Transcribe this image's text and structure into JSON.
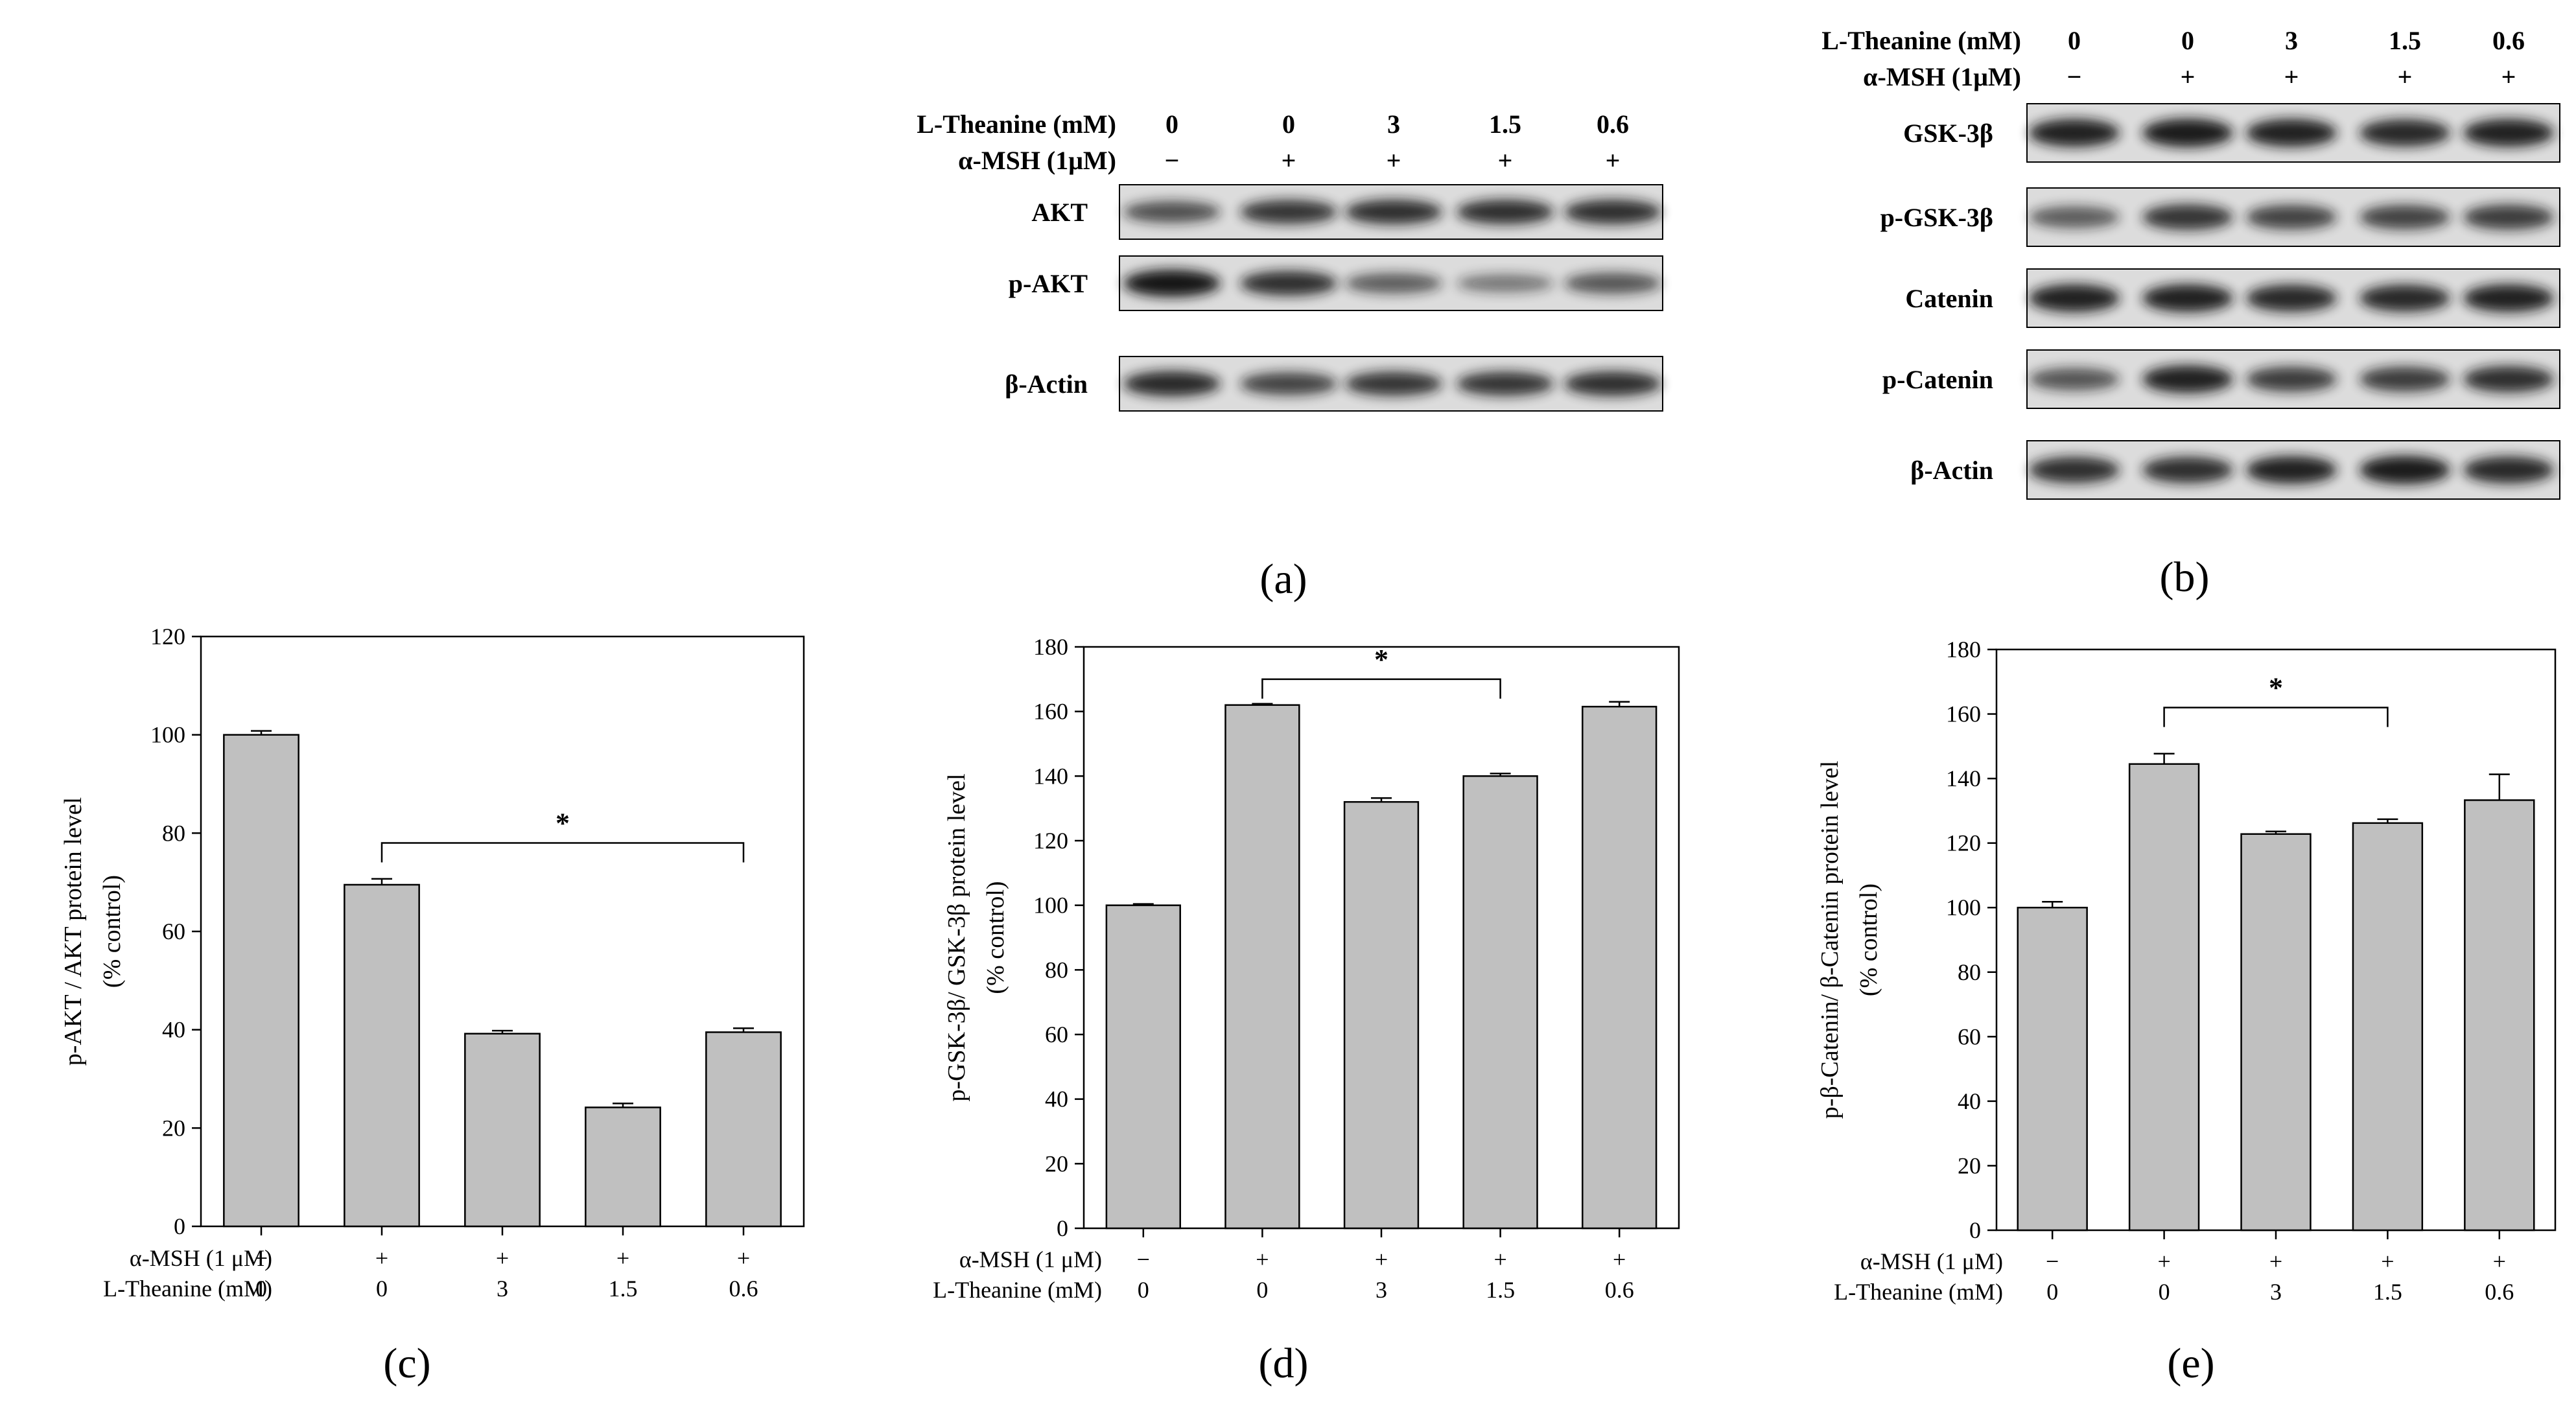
{
  "panels": {
    "a": {
      "letter": "(a)",
      "header": {
        "rows": [
          {
            "label": "L-Theanine (mM)",
            "values": [
              "0",
              "0",
              "3",
              "1.5",
              "0.6"
            ]
          },
          {
            "label": "α-MSH (1μM)",
            "values": [
              "−",
              "+",
              "+",
              "+",
              "+"
            ]
          }
        ]
      },
      "blots": [
        {
          "label": "AKT",
          "intensity": [
            0.55,
            0.75,
            0.8,
            0.8,
            0.8
          ]
        },
        {
          "label": "p-AKT",
          "intensity": [
            1.0,
            0.8,
            0.45,
            0.25,
            0.5
          ]
        },
        {
          "label": "β-Actin",
          "intensity": [
            0.85,
            0.65,
            0.75,
            0.75,
            0.8
          ]
        }
      ]
    },
    "b": {
      "letter": "(b)",
      "header": {
        "rows": [
          {
            "label": "L-Theanine (mM)",
            "values": [
              "0",
              "0",
              "3",
              "1.5",
              "0.6"
            ]
          },
          {
            "label": "α-MSH (1μM)",
            "values": [
              "−",
              "+",
              "+",
              "+",
              "+"
            ]
          }
        ]
      },
      "blots": [
        {
          "label": "GSK-3β",
          "intensity": [
            0.9,
            0.95,
            0.9,
            0.85,
            0.9
          ]
        },
        {
          "label": "p-GSK-3β",
          "intensity": [
            0.45,
            0.75,
            0.65,
            0.65,
            0.7
          ]
        },
        {
          "label": "Catenin",
          "intensity": [
            0.9,
            0.9,
            0.85,
            0.85,
            0.9
          ]
        },
        {
          "label": "p-Catenin",
          "intensity": [
            0.5,
            0.9,
            0.7,
            0.7,
            0.8
          ]
        },
        {
          "label": "β-Actin",
          "intensity": [
            0.8,
            0.8,
            0.9,
            0.95,
            0.85
          ]
        }
      ]
    }
  },
  "chart_data": [
    {
      "id": "c",
      "letter": "(c)",
      "type": "bar",
      "ylabel": [
        "p-AKT / AKT protein level",
        "(% control)"
      ],
      "ylim": [
        0,
        120
      ],
      "yticks": [
        0,
        20,
        40,
        60,
        80,
        100,
        120
      ],
      "categories": [
        "1",
        "2",
        "3",
        "4",
        "5"
      ],
      "values": [
        100,
        69.5,
        39.2,
        24.2,
        39.5
      ],
      "errors": [
        0.8,
        1.2,
        0.6,
        0.8,
        0.8
      ],
      "conditions": [
        {
          "label": "α-MSH (1 μM)",
          "values": [
            "−",
            "+",
            "+",
            "+",
            "+"
          ]
        },
        {
          "label": "L-Theanine (mM)",
          "values": [
            "0",
            "0",
            "3",
            "1.5",
            "0.6"
          ]
        }
      ],
      "significance": {
        "from": 1,
        "to": 4,
        "label": "*",
        "y": 78
      }
    },
    {
      "id": "d",
      "letter": "(d)",
      "type": "bar",
      "ylabel": [
        "p-GSK-3β/ GSK-3β protein level",
        "(% control)"
      ],
      "ylim": [
        0,
        180
      ],
      "yticks": [
        0,
        20,
        40,
        60,
        80,
        100,
        120,
        140,
        160,
        180
      ],
      "categories": [
        "1",
        "2",
        "3",
        "4",
        "5"
      ],
      "values": [
        100,
        162,
        132,
        140,
        161.5
      ],
      "errors": [
        0.4,
        0.4,
        1.2,
        0.8,
        1.5
      ],
      "conditions": [
        {
          "label": "α-MSH (1 μM)",
          "values": [
            "−",
            "+",
            "+",
            "+",
            "+"
          ]
        },
        {
          "label": "L-Theanine (mM)",
          "values": [
            "0",
            "0",
            "3",
            "1.5",
            "0.6"
          ]
        }
      ],
      "significance": {
        "from": 1,
        "to": 3,
        "label": "*",
        "y": 170
      }
    },
    {
      "id": "e",
      "letter": "(e)",
      "type": "bar",
      "ylabel": [
        "p-β-Catenin/ β-Catenin protein level",
        "(% control)"
      ],
      "ylim": [
        0,
        180
      ],
      "yticks": [
        0,
        20,
        40,
        60,
        80,
        100,
        120,
        140,
        160,
        180
      ],
      "categories": [
        "1",
        "2",
        "3",
        "4",
        "5"
      ],
      "values": [
        100,
        144.5,
        122.8,
        126.2,
        133.3
      ],
      "errors": [
        1.8,
        3.2,
        0.8,
        1.2,
        8.0
      ],
      "conditions": [
        {
          "label": "α-MSH (1 μM)",
          "values": [
            "−",
            "+",
            "+",
            "+",
            "+"
          ]
        },
        {
          "label": "L-Theanine (mM)",
          "values": [
            "0",
            "0",
            "3",
            "1.5",
            "0.6"
          ]
        }
      ],
      "significance": {
        "from": 1,
        "to": 3,
        "label": "*",
        "y": 162
      }
    }
  ],
  "colors": {
    "bar_fill": "#c0c0c0",
    "bar_stroke": "#000000",
    "blot_bg": "#dcdcdc",
    "band": "#141414"
  }
}
